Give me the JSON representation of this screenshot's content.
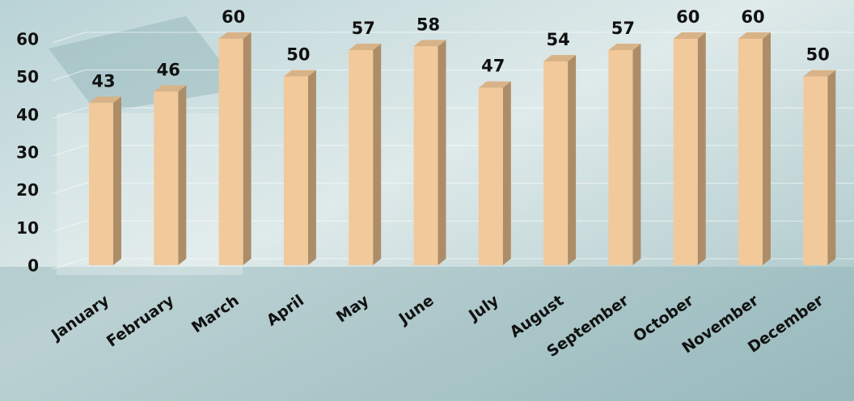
{
  "chart_data": {
    "type": "bar",
    "categories": [
      "January",
      "February",
      "March",
      "April",
      "May",
      "June",
      "July",
      "August",
      "September",
      "October",
      "November",
      "December"
    ],
    "values": [
      43,
      46,
      60,
      50,
      57,
      58,
      47,
      54,
      57,
      60,
      60,
      50
    ],
    "color": "#f2c99b",
    "ylim": [
      0,
      60
    ],
    "yticks": [
      0,
      10,
      20,
      30,
      40,
      50,
      60
    ],
    "grid": true
  }
}
